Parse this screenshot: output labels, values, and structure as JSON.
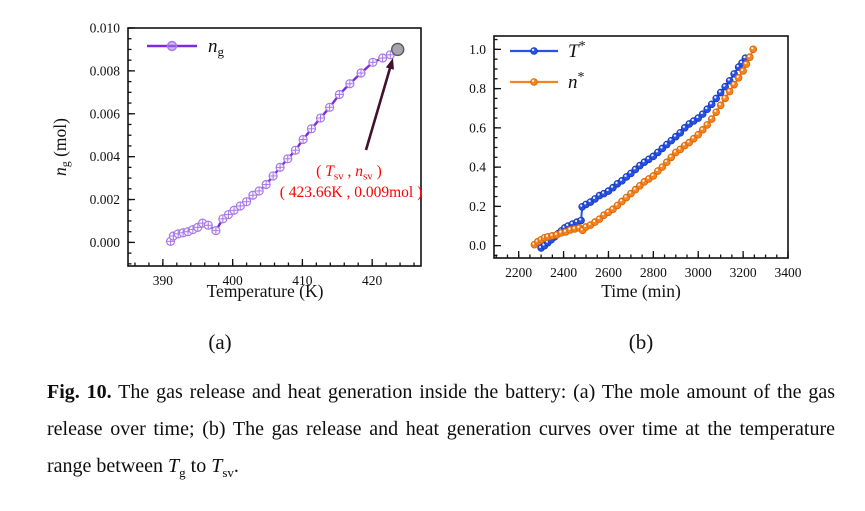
{
  "figure": {
    "sublabel_a": "(a)",
    "sublabel_b": "(b)",
    "caption": {
      "label": "Fig. 10.",
      "body": " The gas release and heat generation inside the battery: (a) The mole amount of the gas release over time; (b) The gas release and heat generation curves over time at the temperature range between ",
      "tg_base": "T",
      "tg_sub": "g",
      "mid": " to ",
      "tsv_base": "T",
      "tsv_sub": "sv",
      "end": "."
    }
  },
  "colors": {
    "frame": "#111111",
    "purple_line": "#7d2ae0",
    "purple_marker": "#a879e8",
    "gray_point_fill": "#a8a4ac",
    "gray_point_stroke": "#5a565e",
    "arrow": "#43102e",
    "annotation_red": "#ff0000",
    "blue_line": "#2853e2",
    "blue_stroke": "#1737b8",
    "orange_line": "#f8821c",
    "orange_stroke": "#d56505",
    "highlight": "#ffffff"
  },
  "chart_data": [
    {
      "id": "a",
      "type": "line",
      "title": "",
      "xlabel": "Temperature (K)",
      "ylabel": {
        "base": "n",
        "sub": "g",
        "rest": " (mol)"
      },
      "xlim": [
        385,
        427
      ],
      "ylim": [
        -0.0011,
        0.01
      ],
      "xticks": [
        390,
        400,
        410,
        420
      ],
      "xtick_labels": [
        "390",
        "400",
        "410",
        "420"
      ],
      "xminor_step": 2,
      "yticks": [
        0,
        0.002,
        0.004,
        0.006,
        0.008,
        0.01
      ],
      "ytick_labels": [
        "0.000",
        "0.002",
        "0.004",
        "0.006",
        "0.008",
        "0.010"
      ],
      "yminor_step": 0.0005,
      "grid": false,
      "legend_position": "top-left",
      "legend": [
        {
          "base": "n",
          "sub": "g"
        }
      ],
      "series": [
        {
          "name": "n_g",
          "marker": "circled-plus",
          "points": [
            [
              391.1,
              5e-05
            ],
            [
              391.5,
              0.0003
            ],
            [
              392.2,
              0.0004
            ],
            [
              392.9,
              0.00045
            ],
            [
              393.6,
              0.0005
            ],
            [
              394.3,
              0.0006
            ],
            [
              395.0,
              0.0007
            ],
            [
              395.7,
              0.0009
            ],
            [
              396.5,
              0.0008
            ],
            [
              397.6,
              0.00055
            ],
            [
              398.6,
              0.0011
            ],
            [
              399.4,
              0.0013
            ],
            [
              400.2,
              0.0015
            ],
            [
              401.1,
              0.0017
            ],
            [
              402.0,
              0.0019
            ],
            [
              402.9,
              0.0022
            ],
            [
              403.8,
              0.0024
            ],
            [
              404.8,
              0.0027
            ],
            [
              405.8,
              0.0031
            ],
            [
              406.8,
              0.0035
            ],
            [
              407.9,
              0.0039
            ],
            [
              409.0,
              0.0043
            ],
            [
              410.1,
              0.0048
            ],
            [
              411.3,
              0.0053
            ],
            [
              412.6,
              0.0058
            ],
            [
              413.9,
              0.0063
            ],
            [
              415.3,
              0.0069
            ],
            [
              416.8,
              0.0074
            ],
            [
              418.4,
              0.0079
            ],
            [
              420.1,
              0.0084
            ],
            [
              421.5,
              0.0086
            ],
            [
              422.6,
              0.00875
            ]
          ]
        }
      ],
      "endpoint": {
        "x": 423.66,
        "y": 0.009
      },
      "annotation": {
        "open": "( ",
        "var1": "T",
        "sub1": "sv",
        "comma": " , ",
        "var2": "n",
        "sub2": "sv",
        "close": " )",
        "line2": "( 423.66K , 0.009mol )"
      }
    },
    {
      "id": "b",
      "type": "line",
      "title": "",
      "xlabel": "Time (min)",
      "ylabel": null,
      "xlim": [
        2090,
        3400
      ],
      "ylim": [
        -0.063,
        1.068
      ],
      "xticks": [
        2200,
        2400,
        2600,
        2800,
        3000,
        3200,
        3400
      ],
      "xtick_labels": [
        "2200",
        "2400",
        "2600",
        "2800",
        "3000",
        "3200",
        "3400"
      ],
      "xminor_step": 50,
      "yticks": [
        0,
        0.2,
        0.4,
        0.6,
        0.8,
        1.0
      ],
      "ytick_labels": [
        "0.0",
        "0.2",
        "0.4",
        "0.6",
        "0.8",
        "1.0"
      ],
      "yminor_step": 0.05,
      "grid": false,
      "legend_position": "top-left",
      "legend": [
        {
          "base": "T",
          "sup": "*"
        },
        {
          "base": "n",
          "sup": "*"
        }
      ],
      "series": [
        {
          "name": "T*",
          "marker": "ball",
          "points": [
            [
              2300,
              -0.012
            ],
            [
              2315,
              0.0
            ],
            [
              2330,
              0.015
            ],
            [
              2345,
              0.03
            ],
            [
              2360,
              0.045
            ],
            [
              2375,
              0.06
            ],
            [
              2390,
              0.075
            ],
            [
              2405,
              0.09
            ],
            [
              2420,
              0.1
            ],
            [
              2440,
              0.11
            ],
            [
              2460,
              0.12
            ],
            [
              2478,
              0.128
            ],
            [
              2483,
              0.198
            ],
            [
              2500,
              0.21
            ],
            [
              2520,
              0.222
            ],
            [
              2540,
              0.238
            ],
            [
              2560,
              0.255
            ],
            [
              2580,
              0.265
            ],
            [
              2600,
              0.278
            ],
            [
              2620,
              0.295
            ],
            [
              2640,
              0.315
            ],
            [
              2660,
              0.33
            ],
            [
              2680,
              0.35
            ],
            [
              2700,
              0.368
            ],
            [
              2720,
              0.388
            ],
            [
              2740,
              0.408
            ],
            [
              2760,
              0.425
            ],
            [
              2780,
              0.44
            ],
            [
              2800,
              0.455
            ],
            [
              2820,
              0.475
            ],
            [
              2840,
              0.495
            ],
            [
              2860,
              0.515
            ],
            [
              2880,
              0.535
            ],
            [
              2900,
              0.555
            ],
            [
              2920,
              0.575
            ],
            [
              2940,
              0.6
            ],
            [
              2960,
              0.62
            ],
            [
              2980,
              0.635
            ],
            [
              3000,
              0.65
            ],
            [
              3020,
              0.67
            ],
            [
              3040,
              0.695
            ],
            [
              3060,
              0.72
            ],
            [
              3080,
              0.75
            ],
            [
              3100,
              0.78
            ],
            [
              3120,
              0.81
            ],
            [
              3140,
              0.84
            ],
            [
              3160,
              0.875
            ],
            [
              3180,
              0.91
            ],
            [
              3195,
              0.93
            ],
            [
              3210,
              0.955
            ]
          ]
        },
        {
          "name": "n*",
          "marker": "ball",
          "points": [
            [
              2270,
              0.005
            ],
            [
              2285,
              0.02
            ],
            [
              2300,
              0.03
            ],
            [
              2315,
              0.04
            ],
            [
              2330,
              0.045
            ],
            [
              2350,
              0.05
            ],
            [
              2370,
              0.055
            ],
            [
              2390,
              0.065
            ],
            [
              2410,
              0.07
            ],
            [
              2430,
              0.08
            ],
            [
              2450,
              0.085
            ],
            [
              2470,
              0.09
            ],
            [
              2485,
              0.078
            ],
            [
              2500,
              0.095
            ],
            [
              2520,
              0.105
            ],
            [
              2540,
              0.12
            ],
            [
              2560,
              0.135
            ],
            [
              2580,
              0.155
            ],
            [
              2600,
              0.17
            ],
            [
              2620,
              0.185
            ],
            [
              2640,
              0.205
            ],
            [
              2660,
              0.225
            ],
            [
              2680,
              0.245
            ],
            [
              2700,
              0.265
            ],
            [
              2720,
              0.285
            ],
            [
              2740,
              0.305
            ],
            [
              2760,
              0.325
            ],
            [
              2780,
              0.34
            ],
            [
              2800,
              0.355
            ],
            [
              2820,
              0.38
            ],
            [
              2840,
              0.4
            ],
            [
              2860,
              0.425
            ],
            [
              2880,
              0.45
            ],
            [
              2900,
              0.475
            ],
            [
              2920,
              0.49
            ],
            [
              2940,
              0.51
            ],
            [
              2960,
              0.525
            ],
            [
              2980,
              0.545
            ],
            [
              3000,
              0.565
            ],
            [
              3020,
              0.59
            ],
            [
              3040,
              0.615
            ],
            [
              3060,
              0.645
            ],
            [
              3080,
              0.68
            ],
            [
              3100,
              0.715
            ],
            [
              3120,
              0.75
            ],
            [
              3140,
              0.785
            ],
            [
              3160,
              0.82
            ],
            [
              3180,
              0.855
            ],
            [
              3200,
              0.89
            ],
            [
              3215,
              0.925
            ],
            [
              3230,
              0.96
            ],
            [
              3245,
              1.0
            ]
          ]
        }
      ]
    }
  ]
}
